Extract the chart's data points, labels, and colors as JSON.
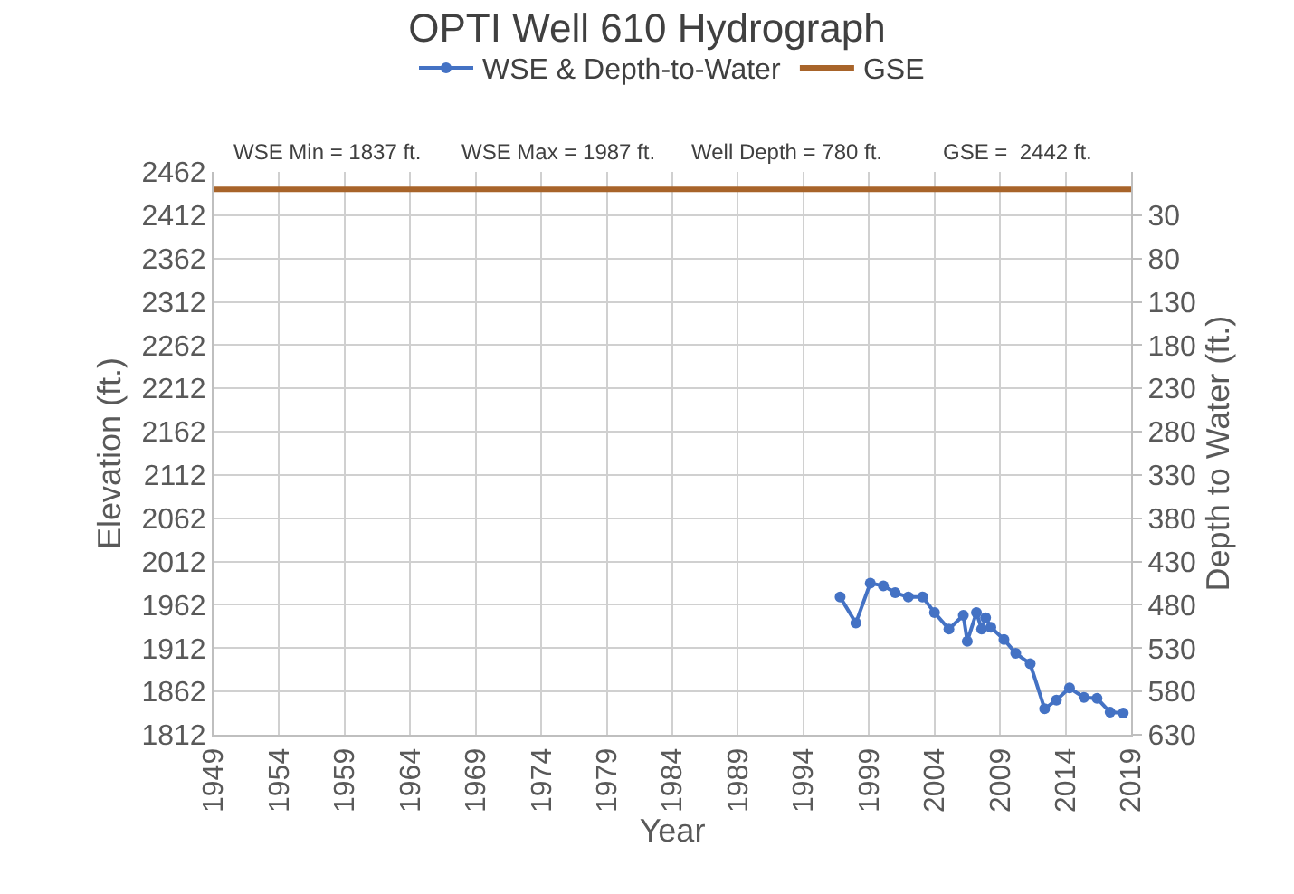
{
  "chart_data": {
    "type": "line",
    "title": "OPTI Well 610 Hydrograph",
    "xlabel": "Year",
    "ylabel": "Elevation (ft.)",
    "y2label": "Depth to Water (ft.)",
    "annotations": [
      "WSE Min = 1837 ft.",
      "WSE Max = 1987 ft.",
      "Well Depth = 780 ft.",
      "GSE =  2442 ft."
    ],
    "series": [
      {
        "name": "WSE & Depth-to-Water",
        "color": "#4472c4",
        "marker": "circle",
        "x": [
          1996.8,
          1998.0,
          1999.1,
          2000.1,
          2001.0,
          2002.0,
          2003.1,
          2004.0,
          2005.1,
          2006.2,
          2006.5,
          2007.2,
          2007.6,
          2007.9,
          2008.3,
          2009.3,
          2010.2,
          2011.3,
          2012.4,
          2013.3,
          2014.3,
          2015.4,
          2016.4,
          2017.4,
          2018.4
        ],
        "values": [
          1971,
          1941,
          1987,
          1984,
          1976,
          1971,
          1971,
          1953,
          1934,
          1950,
          1920,
          1953,
          1934,
          1947,
          1936,
          1922,
          1906,
          1894,
          1842,
          1852,
          1866,
          1855,
          1854,
          1838,
          1837
        ]
      },
      {
        "name": "GSE",
        "color": "#a8642a",
        "marker": "none",
        "x": [
          1949,
          2019
        ],
        "values": [
          2442,
          2442
        ]
      }
    ],
    "xlim": [
      1949,
      2019
    ],
    "xticks": [
      1949,
      1954,
      1959,
      1964,
      1969,
      1974,
      1979,
      1984,
      1989,
      1994,
      1999,
      2004,
      2009,
      2014,
      2019
    ],
    "ylim": [
      1812,
      2462
    ],
    "yticks": [
      1812,
      1862,
      1912,
      1962,
      2012,
      2062,
      2112,
      2162,
      2212,
      2262,
      2312,
      2362,
      2412,
      2462
    ],
    "y2lim": [
      630,
      -20
    ],
    "y2ticks": [
      30,
      80,
      130,
      180,
      230,
      280,
      330,
      380,
      430,
      480,
      530,
      580,
      630
    ],
    "grid": true,
    "legend": "top"
  }
}
